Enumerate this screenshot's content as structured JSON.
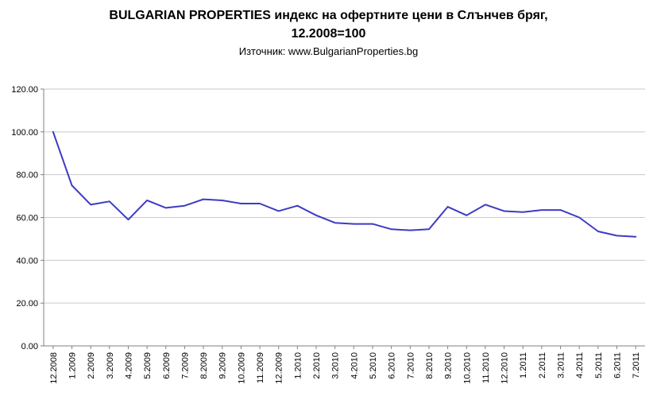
{
  "title": {
    "line1": "BULGARIAN PROPERTIES индекс на офертните цени в Слънчев бряг,",
    "line2": "12.2008=100",
    "source": "Източник: www.BulgarianProperties.bg"
  },
  "chart_data": {
    "type": "line",
    "title": "BULGARIAN PROPERTIES индекс на офертните цени в Слънчев бряг, 12.2008=100",
    "source": "Източник: www.BulgarianProperties.bg",
    "categories": [
      "12.2008",
      "1.2009",
      "2.2009",
      "3.2009",
      "4.2009",
      "5.2009",
      "6.2009",
      "7.2009",
      "8.2009",
      "9.2009",
      "10.2009",
      "11.2009",
      "12.2009",
      "1.2010",
      "2.2010",
      "3.2010",
      "4.2010",
      "5.2010",
      "6.2010",
      "7.2010",
      "8.2010",
      "9.2010",
      "10.2010",
      "11.2010",
      "12.2010",
      "1.2011",
      "2.2011",
      "3.2011",
      "4.2011",
      "5.2011",
      "6.2011",
      "7.2011"
    ],
    "values": [
      100.0,
      75.0,
      66.0,
      67.5,
      59.0,
      68.0,
      64.5,
      65.5,
      68.5,
      68.0,
      66.5,
      66.5,
      63.0,
      65.5,
      61.0,
      57.5,
      57.0,
      57.0,
      54.5,
      54.0,
      54.5,
      65.0,
      61.0,
      66.0,
      63.0,
      62.5,
      63.5,
      63.5,
      60.0,
      53.5,
      51.5,
      51.0
    ],
    "ylim": [
      0,
      120
    ],
    "ytick_step": 20,
    "ytick_labels": [
      "0.00",
      "20.00",
      "40.00",
      "60.00",
      "80.00",
      "100.00",
      "120.00"
    ],
    "xlabel": "",
    "ylabel": "",
    "grid": true,
    "legend": "none",
    "line_color": "#3c3cc4",
    "grid_color": "#c9c9c9",
    "axis_color": "#808080"
  }
}
